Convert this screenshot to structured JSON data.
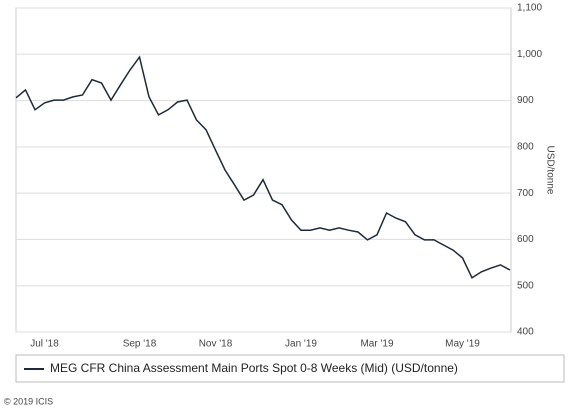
{
  "chart_data": {
    "type": "line",
    "y_label": "USD/tonne",
    "source": "© 2019 ICIS",
    "categories": [
      null,
      null,
      null,
      "Jul '18",
      null,
      null,
      null,
      null,
      null,
      null,
      null,
      null,
      null,
      "Sep '18",
      null,
      null,
      null,
      null,
      null,
      null,
      null,
      "Nov '18",
      null,
      null,
      null,
      null,
      null,
      null,
      null,
      null,
      "Jan '19",
      null,
      null,
      null,
      null,
      null,
      null,
      null,
      "Mar '19",
      null,
      null,
      null,
      null,
      null,
      null,
      null,
      null,
      "May '19",
      null,
      null,
      null,
      null,
      null
    ],
    "series": [
      {
        "name": "MEG CFR China Assessment Main Ports Spot 0-8 Weeks (Mid) (USD/tonne)",
        "color": "#1c2a3a",
        "values": [
          906,
          923,
          880,
          895,
          901,
          901,
          908,
          912,
          945,
          938,
          901,
          934,
          966,
          994,
          908,
          869,
          880,
          897,
          901,
          858,
          837,
          793,
          750,
          718,
          685,
          696,
          729,
          685,
          675,
          642,
          620,
          620,
          625,
          620,
          625,
          620,
          616,
          599,
          610,
          657,
          646,
          638,
          610,
          599,
          599,
          588,
          577,
          560,
          517,
          530,
          538,
          545,
          534
        ]
      }
    ],
    "ylim": [
      400,
      1100
    ],
    "yticks": [
      400,
      500,
      600,
      700,
      800,
      900,
      {
        "value": 1000,
        "label": "1,000"
      },
      {
        "value": 1100,
        "label": "1,100"
      }
    ],
    "grid": true
  }
}
